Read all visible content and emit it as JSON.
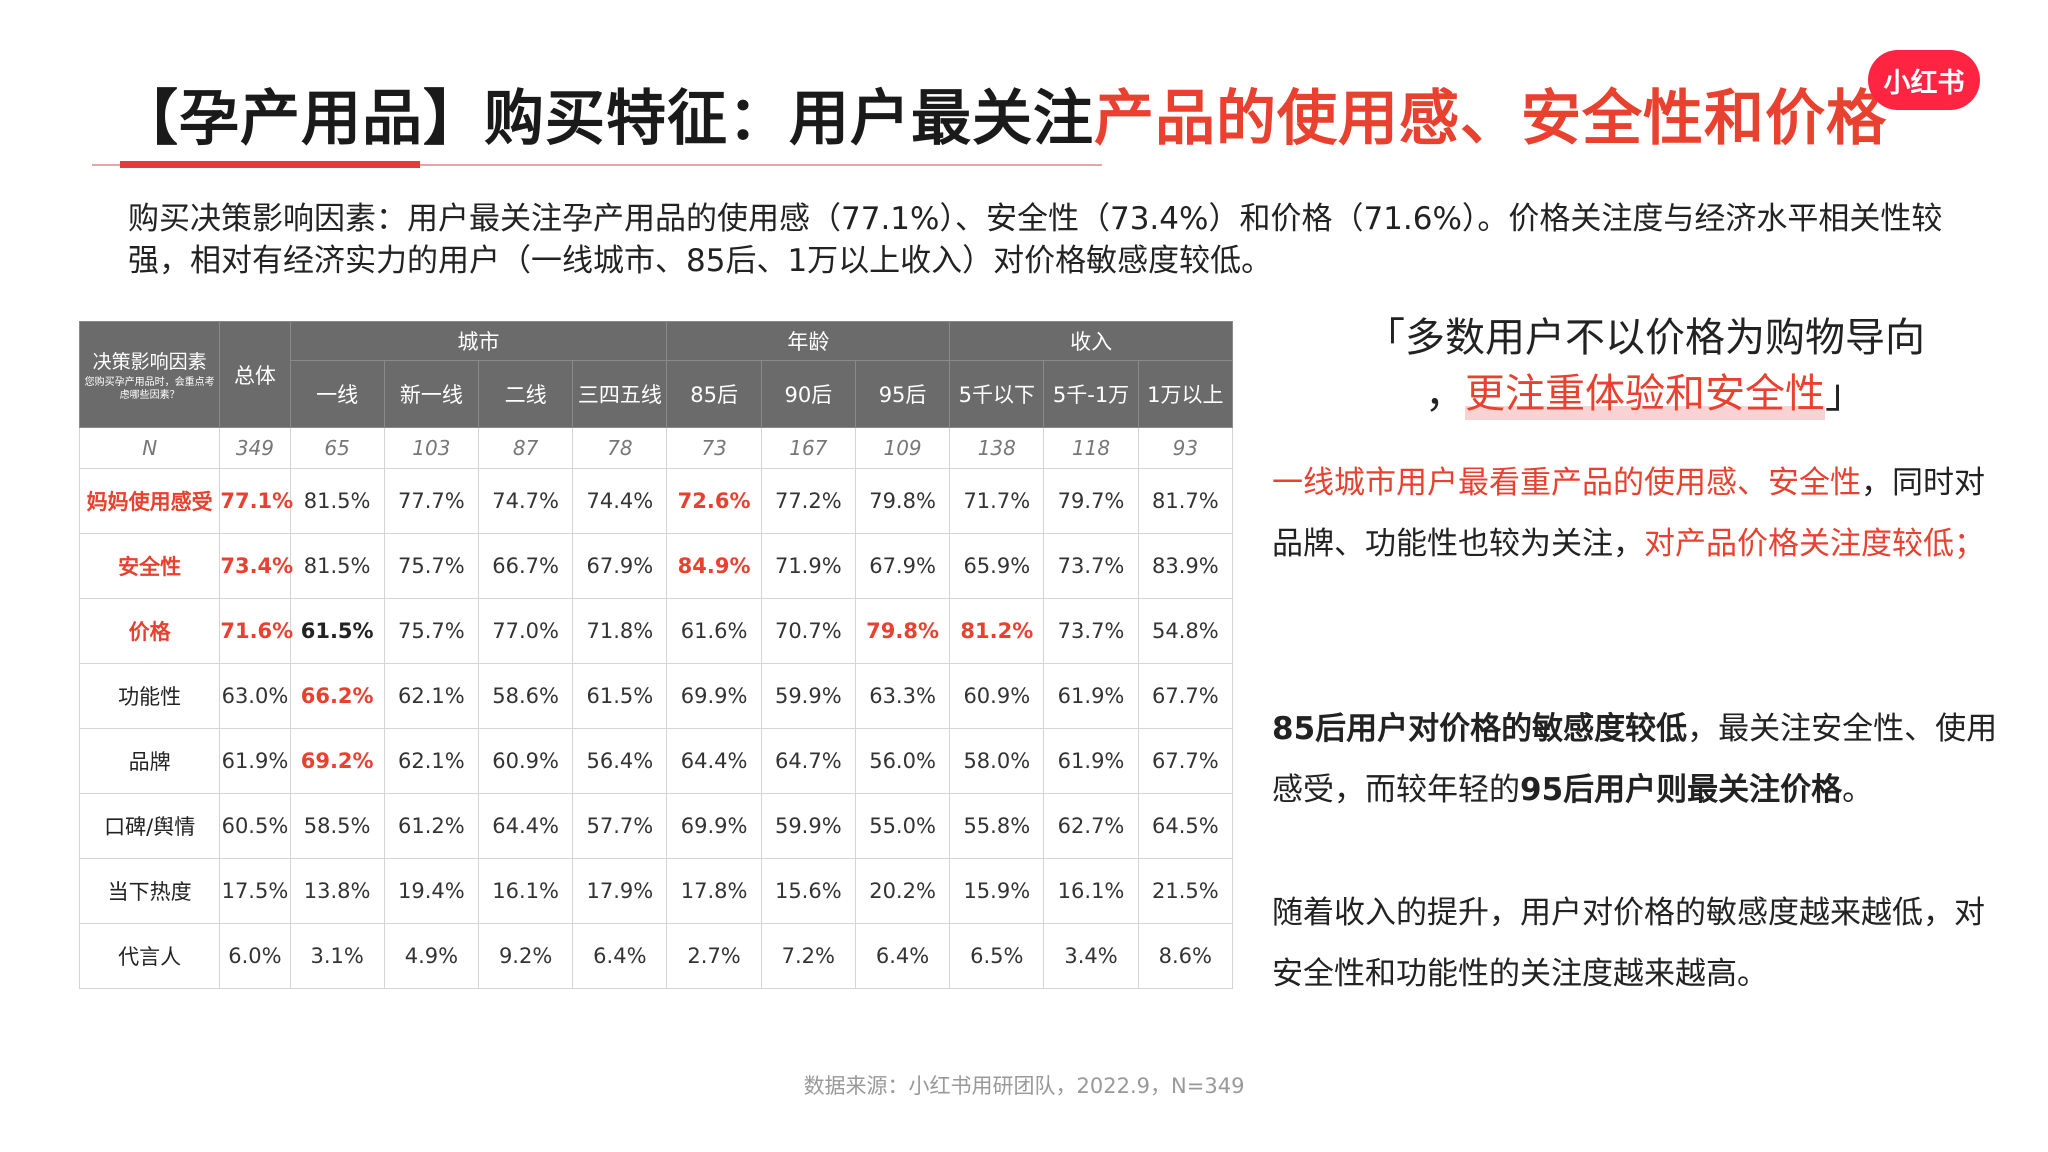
{
  "title": {
    "black": "【孕产用品】购买特征：用户最关注",
    "red": "产品的使用感、安全性和价格"
  },
  "logo": "小红书",
  "intro": "购买决策影响因素：用户最关注孕产用品的使用感（77.1%）、安全性（73.4%）和价格（71.6%）。价格关注度与经济水平相关性较强，相对有经济实力的用户（一线城市、85后、1万以上收入）对价格敏感度较低。",
  "table": {
    "factor_header": "决策影响因素",
    "factor_question": "您购买孕产用品时，会重点考虑哪些因素？",
    "total_header": "总体",
    "groups": [
      "城市",
      "年龄",
      "收入"
    ],
    "columns": [
      "一线",
      "新一线",
      "二线",
      "三四五线",
      "85后",
      "90后",
      "95后",
      "5千以下",
      "5千-1万",
      "1万以上"
    ],
    "n_row": [
      "N",
      "349",
      "65",
      "103",
      "87",
      "78",
      "73",
      "167",
      "109",
      "138",
      "118",
      "93"
    ],
    "rows": [
      {
        "label": "妈妈使用感受",
        "values": [
          "77.1%",
          "81.5%",
          "77.7%",
          "74.7%",
          "74.4%",
          "72.6%",
          "77.2%",
          "79.8%",
          "71.7%",
          "79.7%",
          "81.7%"
        ]
      },
      {
        "label": "安全性",
        "values": [
          "73.4%",
          "81.5%",
          "75.7%",
          "66.7%",
          "67.9%",
          "84.9%",
          "71.9%",
          "67.9%",
          "65.9%",
          "73.7%",
          "83.9%"
        ]
      },
      {
        "label": "价格",
        "values": [
          "71.6%",
          "61.5%",
          "75.7%",
          "77.0%",
          "71.8%",
          "61.6%",
          "70.7%",
          "79.8%",
          "81.2%",
          "73.7%",
          "54.8%"
        ]
      },
      {
        "label": "功能性",
        "values": [
          "63.0%",
          "66.2%",
          "62.1%",
          "58.6%",
          "61.5%",
          "69.9%",
          "59.9%",
          "63.3%",
          "60.9%",
          "61.9%",
          "67.7%"
        ]
      },
      {
        "label": "品牌",
        "values": [
          "61.9%",
          "69.2%",
          "62.1%",
          "60.9%",
          "56.4%",
          "64.4%",
          "64.7%",
          "56.0%",
          "58.0%",
          "61.9%",
          "67.7%"
        ]
      },
      {
        "label": "口碑/舆情",
        "values": [
          "60.5%",
          "58.5%",
          "61.2%",
          "64.4%",
          "57.7%",
          "69.9%",
          "59.9%",
          "55.0%",
          "55.8%",
          "62.7%",
          "64.5%"
        ]
      },
      {
        "label": "当下热度",
        "values": [
          "17.5%",
          "13.8%",
          "19.4%",
          "16.1%",
          "17.9%",
          "17.8%",
          "15.6%",
          "20.2%",
          "15.9%",
          "16.1%",
          "21.5%"
        ]
      },
      {
        "label": "代言人",
        "values": [
          "6.0%",
          "3.1%",
          "4.9%",
          "9.2%",
          "6.4%",
          "2.7%",
          "7.2%",
          "6.4%",
          "6.5%",
          "3.4%",
          "8.6%"
        ]
      }
    ]
  },
  "quote": {
    "line1": "「多数用户不以价格为购物导向",
    "line2_prefix": "，",
    "line2_highlight": "更注重体验和安全性",
    "line2_suffix": "」"
  },
  "insights": {
    "p1_red": "一线城市用户最看重产品的使用感、安全性",
    "p1_mid": "，同时对品牌、功能性也较为关注，",
    "p1_red2": "对产品价格关注度较低；",
    "p2_bold1": "85后用户对价格的敏感度较低",
    "p2_mid": "，最关注安全性、使用感受，而较年轻的",
    "p2_bold2": "95后用户则最关注价格",
    "p2_end": "。",
    "p3": "随着收入的提升，用户对价格的敏感度越来越低，对安全性和功能性的关注度越来越高。"
  },
  "source": "数据来源：小红书用研团队，2022.9，N=349",
  "colors": {
    "accent_red": "#e8412f",
    "header_gray": "#6b6b6b",
    "logo_red": "#ff2442"
  }
}
